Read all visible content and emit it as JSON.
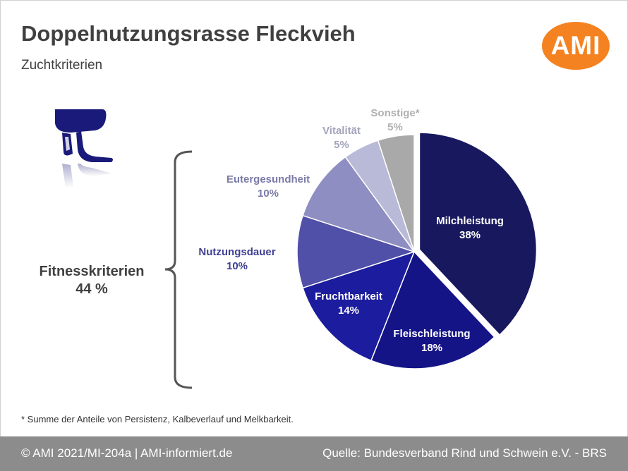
{
  "header": {
    "title": "Doppelnutzungsrasse Fleckvieh",
    "subtitle": "Zuchtkriterien",
    "logo_text": "AMI"
  },
  "brace": {
    "label_line1": "Fitnesskriterien",
    "label_line2": "44 %"
  },
  "footnote": "* Summe der Anteile von Persistenz, Kalbeverlauf und Melkbarkeit.",
  "footer": {
    "left": "© AMI 2021/MI-204a | AMI-informiert.de",
    "right": "Quelle: Bundesverband Rind und Schwein e.V. - BRS"
  },
  "colors": {
    "logo": "#f58220",
    "footer_bg": "#8c8c8c"
  },
  "chart_data": {
    "type": "pie",
    "title": "",
    "slices": [
      {
        "label": "Milchleistung",
        "value": 38,
        "value_label": "38%",
        "color": "#18185f",
        "label_color": "#ffffff",
        "exploded": true
      },
      {
        "label": "Fleischleistung",
        "value": 18,
        "value_label": "18%",
        "color": "#141487",
        "label_color": "#ffffff"
      },
      {
        "label": "Fruchtbarkeit",
        "value": 14,
        "value_label": "14%",
        "color": "#1c1c9e",
        "label_color": "#ffffff"
      },
      {
        "label": "Nutzungsdauer",
        "value": 10,
        "value_label": "10%",
        "color": "#5050a8",
        "label_color": "#3f3f93"
      },
      {
        "label": "Eutergesundheit",
        "value": 10,
        "value_label": "10%",
        "color": "#8e8ec2",
        "label_color": "#7a7aa8"
      },
      {
        "label": "Vitalität",
        "value": 5,
        "value_label": "5%",
        "color": "#b9b9d8",
        "label_color": "#a3a3bd"
      },
      {
        "label": "Sonstige*",
        "value": 5,
        "value_label": "5%",
        "color": "#a9a9a9",
        "label_color": "#b0b0b0"
      }
    ]
  }
}
